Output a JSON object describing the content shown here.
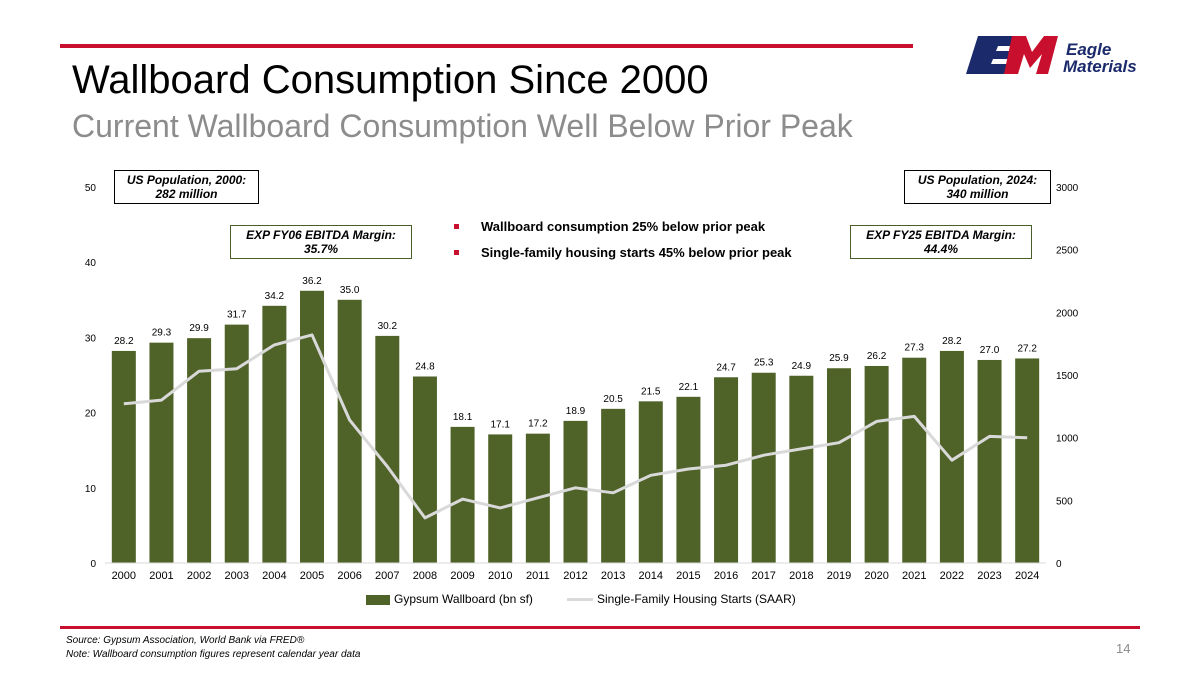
{
  "header": {
    "title": "Wallboard Consumption Since 2000",
    "subtitle": "Current Wallboard Consumption Well Below Prior Peak"
  },
  "logo": {
    "word1": "Eagle",
    "word2": "Materials",
    "mark": "EM"
  },
  "callouts": {
    "pop2000_line1": "US Population, 2000:",
    "pop2000_line2": "282 million",
    "pop2024_line1": "US Population, 2024:",
    "pop2024_line2": "340 million",
    "ebitda06_line1": "EXP FY06 EBITDA Margin:",
    "ebitda06_line2": "35.7%",
    "ebitda25_line1": "EXP FY25 EBITDA Margin:",
    "ebitda25_line2": "44.4%"
  },
  "bullets": [
    "Wallboard consumption 25% below prior peak",
    "Single-family housing starts 45% below prior peak"
  ],
  "footer": {
    "source": "Source: Gypsum Association, World Bank via FRED®",
    "note": "Note: Wallboard consumption figures represent calendar year data",
    "page": "14"
  },
  "colors": {
    "brand_red": "#c8102e",
    "bar": "#4f6228",
    "line": "#d9d9d9",
    "subtitle": "#8c8c8c"
  },
  "chart_data": {
    "type": "bar",
    "categories": [
      "2000",
      "2001",
      "2002",
      "2003",
      "2004",
      "2005",
      "2006",
      "2007",
      "2008",
      "2009",
      "2010",
      "2011",
      "2012",
      "2013",
      "2014",
      "2015",
      "2016",
      "2017",
      "2018",
      "2019",
      "2020",
      "2021",
      "2022",
      "2023",
      "2024"
    ],
    "series": [
      {
        "name": "Gypsum Wallboard (bn sf)",
        "type": "bar",
        "axis": "left",
        "values": [
          28.2,
          29.3,
          29.9,
          31.7,
          34.2,
          36.2,
          35.0,
          30.2,
          24.8,
          18.1,
          17.1,
          17.2,
          18.9,
          20.5,
          21.5,
          22.1,
          24.7,
          25.3,
          24.9,
          25.9,
          26.2,
          27.3,
          28.2,
          27.0,
          27.2
        ],
        "labels": [
          "28.2",
          "29.3",
          "29.9",
          "31.7",
          "34.2",
          "36.2",
          "35.0",
          "30.2",
          "24.8",
          "18.1",
          "17.1",
          "17.2",
          "18.9",
          "20.5",
          "21.5",
          "22.1",
          "24.7",
          "25.3",
          "24.9",
          "25.9",
          "26.2",
          "27.3",
          "28.2",
          "27.0",
          "27.2"
        ]
      },
      {
        "name": "Single-Family Housing Starts (SAAR)",
        "type": "line",
        "axis": "right",
        "values": [
          1270,
          1300,
          1530,
          1550,
          1740,
          1820,
          1140,
          770,
          360,
          510,
          440,
          520,
          600,
          560,
          700,
          750,
          780,
          860,
          910,
          960,
          1130,
          1170,
          820,
          1010,
          1000
        ]
      }
    ],
    "y_left": {
      "min": 0,
      "max": 50,
      "ticks": [
        0,
        10,
        20,
        30,
        40,
        50
      ]
    },
    "y_right": {
      "min": 0,
      "max": 3000,
      "ticks": [
        0,
        500,
        1000,
        1500,
        2000,
        2500,
        3000
      ]
    },
    "legend_position": "bottom",
    "grid": false
  }
}
